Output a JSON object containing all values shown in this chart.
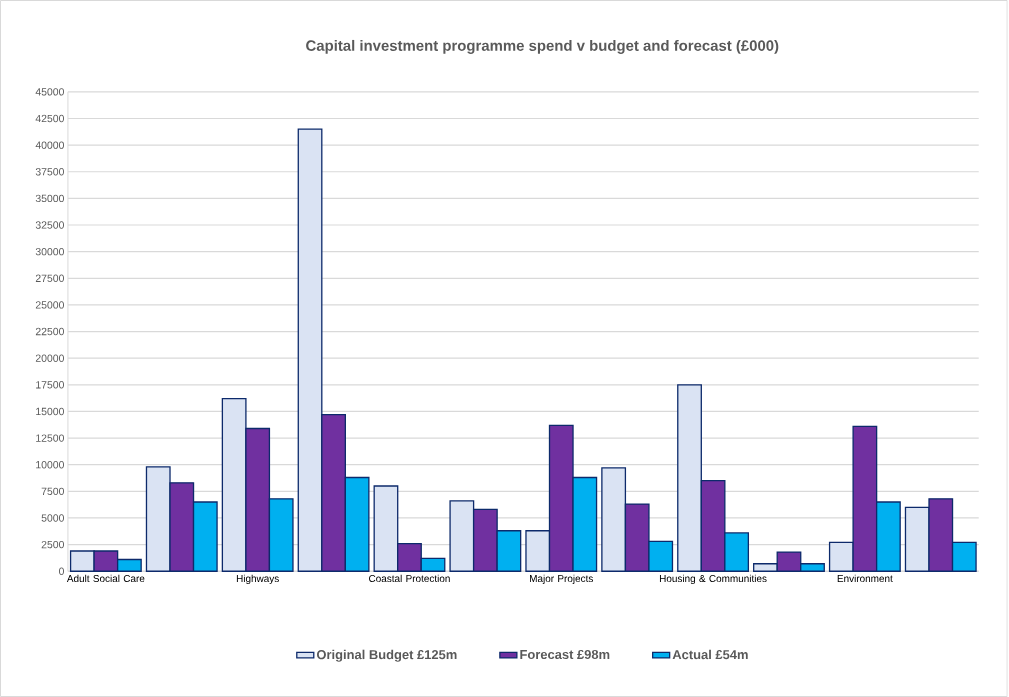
{
  "chart_data": {
    "type": "bar",
    "title": "Capital investment programme spend v budget and forecast (£000)",
    "categories": [
      "Adult Social Care",
      null,
      "Highways",
      null,
      "Coastal Protection",
      null,
      "Major Projects",
      null,
      "Housing & Communities",
      null,
      "Environment",
      null
    ],
    "series": [
      {
        "name": "Original Budget £125m",
        "color": "#dae3f3",
        "values": [
          1900,
          9800,
          16200,
          41500,
          8000,
          6600,
          3800,
          9700,
          17500,
          700,
          2700,
          6000
        ]
      },
      {
        "name": "Forecast £98m",
        "color": "#7030a0",
        "values": [
          1900,
          8300,
          13400,
          14700,
          2600,
          5800,
          13700,
          6300,
          8500,
          1800,
          13600,
          6800
        ]
      },
      {
        "name": "Actual £54m",
        "color": "#00b0f0",
        "values": [
          1100,
          6500,
          6800,
          8800,
          1200,
          3800,
          8800,
          2800,
          3600,
          700,
          6500,
          2700
        ]
      }
    ],
    "ylim": [
      0,
      45000
    ],
    "yticks": [
      0,
      2500,
      5000,
      7500,
      10000,
      12500,
      15000,
      17500,
      20000,
      22500,
      25000,
      27500,
      30000,
      32500,
      35000,
      37500,
      40000,
      42500,
      45000
    ],
    "grid": "y",
    "legend": "bottom"
  }
}
